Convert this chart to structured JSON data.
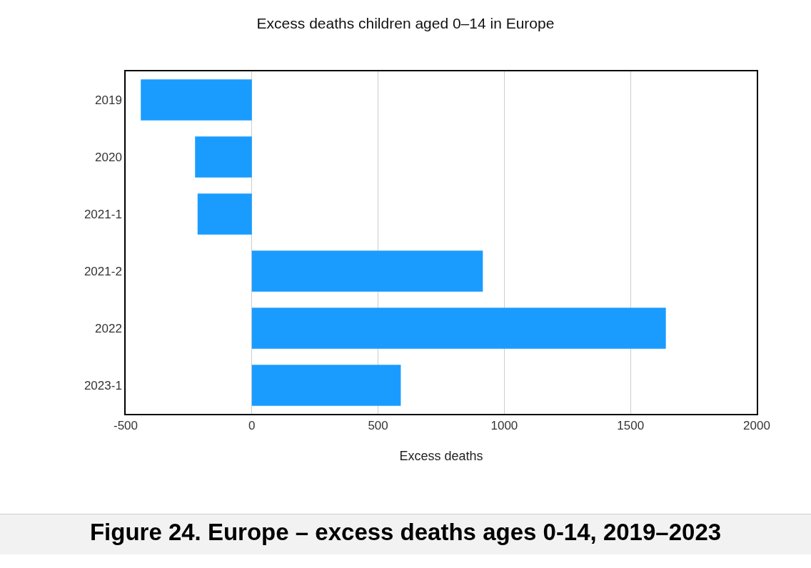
{
  "chart_data": {
    "type": "bar",
    "orientation": "horizontal",
    "title": "Excess deaths children aged 0–14 in Europe",
    "xlabel": "Excess deaths",
    "categories": [
      "2019",
      "2020",
      "2021-1",
      "2021-2",
      "2022",
      "2023-1"
    ],
    "values": [
      -440,
      -225,
      -215,
      915,
      1640,
      590
    ],
    "color": "#1a9cff",
    "xlim": [
      -500,
      2000
    ],
    "xticks": [
      -500,
      0,
      500,
      1000,
      1500,
      2000
    ],
    "grid": "x",
    "annotations": [
      "Figure 24. Europe  – excess deaths ages 0-14,  2019–2023"
    ]
  }
}
